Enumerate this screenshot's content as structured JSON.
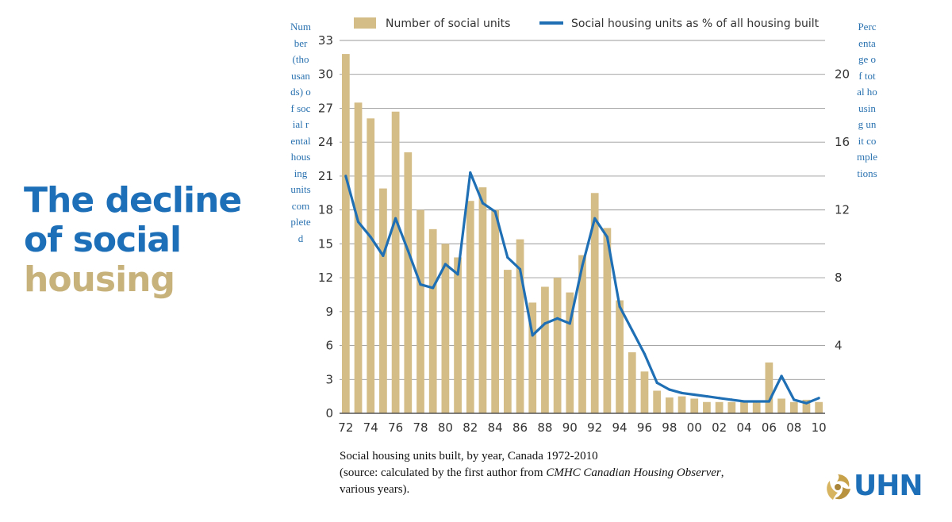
{
  "slide": {
    "title_line1": "The decline",
    "title_line2": "of social",
    "title_line3": "housing",
    "title_blue": "#1d6fb8",
    "title_gold": "#c8b27c"
  },
  "caption": {
    "line1": "Social housing units built, by year, Canada 1972-2010",
    "line2_prefix": "(source: calculated by the first author from ",
    "line2_italic": "CMHC Canadian Housing Observer",
    "line2_suffix": ",",
    "line3": "various years)."
  },
  "logo": {
    "text": "UHN",
    "icon": "uhn-swirl-logo-icon"
  },
  "chart_data": {
    "type": "bar",
    "title": "",
    "ylabel": "Number (thousands) of social rental housing units completed",
    "y2label": "Percentage of total housing unit completions",
    "ylim": [
      0,
      33
    ],
    "y2lim": [
      0,
      22
    ],
    "yticks": [
      0,
      3,
      6,
      9,
      12,
      15,
      18,
      21,
      24,
      27,
      30,
      33
    ],
    "y2ticks": [
      4,
      8,
      12,
      16,
      20
    ],
    "xtick_labels": [
      "72",
      "74",
      "76",
      "78",
      "80",
      "82",
      "84",
      "86",
      "88",
      "90",
      "92",
      "94",
      "96",
      "98",
      "00",
      "02",
      "04",
      "06",
      "08",
      "10"
    ],
    "grid": true,
    "legend_position": "top",
    "colors": {
      "bars": "#d4bd86",
      "line": "#1f6fb5",
      "grid": "#9a9a9a"
    },
    "categories": [
      1972,
      1973,
      1974,
      1975,
      1976,
      1977,
      1978,
      1979,
      1980,
      1981,
      1982,
      1983,
      1984,
      1985,
      1986,
      1987,
      1988,
      1989,
      1990,
      1991,
      1992,
      1993,
      1994,
      1995,
      1996,
      1997,
      1998,
      1999,
      2000,
      2001,
      2002,
      2003,
      2004,
      2005,
      2006,
      2007,
      2008,
      2009,
      2010
    ],
    "series": [
      {
        "name": "Number of social units",
        "kind": "bar",
        "axis": "left",
        "values": [
          31.8,
          27.5,
          26.1,
          19.9,
          26.7,
          23.1,
          18.0,
          16.3,
          15.0,
          13.8,
          18.8,
          20.0,
          18.0,
          12.7,
          15.4,
          9.8,
          11.2,
          12.0,
          10.7,
          14.0,
          19.5,
          16.4,
          10.0,
          5.4,
          3.7,
          2.0,
          1.4,
          1.5,
          1.3,
          1.0,
          1.0,
          1.0,
          1.0,
          1.0,
          4.5,
          1.3,
          1.0,
          1.2,
          1.0
        ]
      },
      {
        "name": "Social housing units as % of all housing built",
        "kind": "line",
        "axis": "right",
        "values": [
          14.0,
          11.3,
          10.4,
          9.3,
          11.5,
          9.6,
          7.6,
          7.4,
          8.8,
          8.2,
          14.2,
          12.4,
          11.9,
          9.2,
          8.5,
          4.6,
          5.3,
          5.6,
          5.3,
          8.7,
          11.5,
          10.4,
          6.3,
          4.9,
          3.5,
          1.8,
          1.4,
          1.2,
          1.1,
          1.0,
          0.9,
          0.8,
          0.7,
          0.7,
          0.7,
          2.2,
          0.8,
          0.6,
          0.9
        ]
      }
    ]
  }
}
